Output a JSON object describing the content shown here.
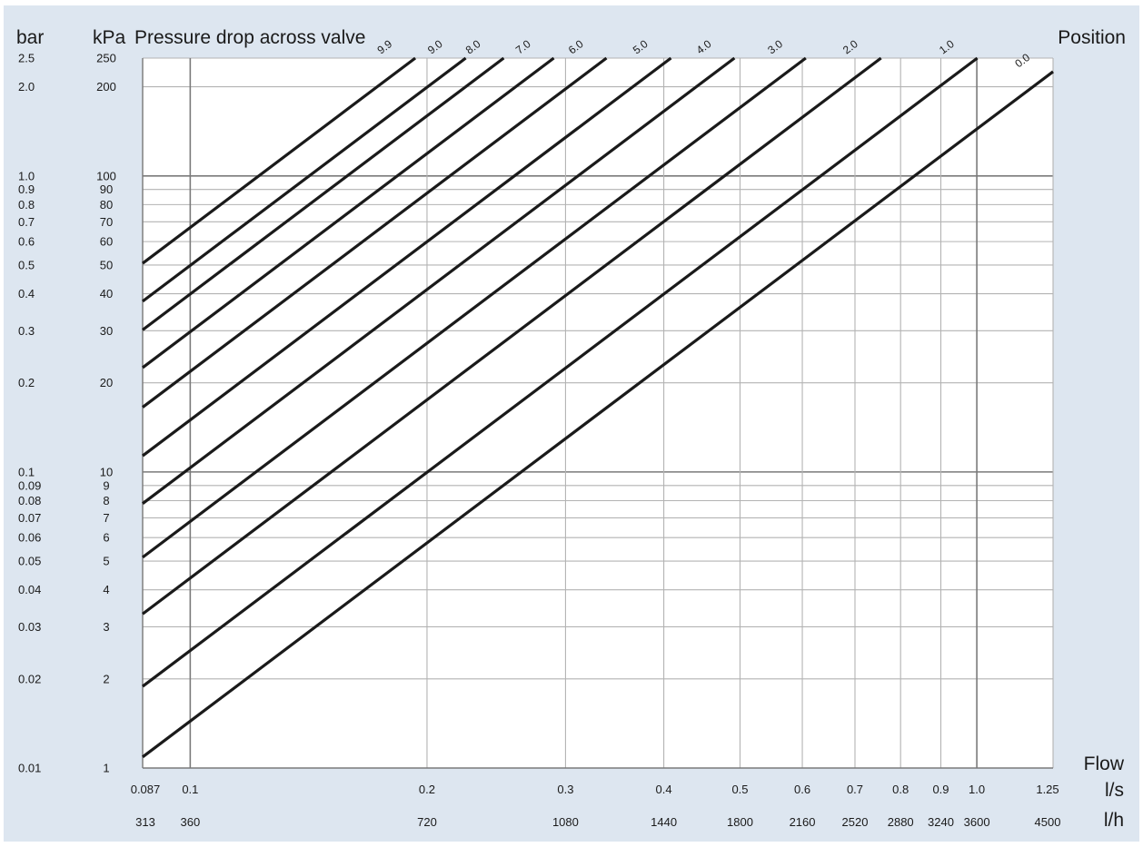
{
  "chart_data": {
    "type": "line",
    "title": "Pressure drop across valve",
    "y_units": [
      "bar",
      "kPa"
    ],
    "legend_title": "Position",
    "xlabel": "Flow",
    "x_units": [
      "l/s",
      "l/h"
    ],
    "x_scale": "log",
    "y_scale": "log",
    "xlim": [
      0.087,
      1.25
    ],
    "ylim_kpa": [
      1,
      250
    ],
    "x_ticks": [
      {
        "ls": 0.087,
        "ls_label": "0.087",
        "lh_label": "313"
      },
      {
        "ls": 0.1,
        "ls_label": "0.1",
        "lh_label": "360"
      },
      {
        "ls": 0.2,
        "ls_label": "0.2",
        "lh_label": "720"
      },
      {
        "ls": 0.3,
        "ls_label": "0.3",
        "lh_label": "1080"
      },
      {
        "ls": 0.4,
        "ls_label": "0.4",
        "lh_label": "1440"
      },
      {
        "ls": 0.5,
        "ls_label": "0.5",
        "lh_label": "1800"
      },
      {
        "ls": 0.6,
        "ls_label": "0.6",
        "lh_label": "2160"
      },
      {
        "ls": 0.7,
        "ls_label": "0.7",
        "lh_label": "2520"
      },
      {
        "ls": 0.8,
        "ls_label": "0.8",
        "lh_label": "2880"
      },
      {
        "ls": 0.9,
        "ls_label": "0.9",
        "lh_label": "3240"
      },
      {
        "ls": 1.0,
        "ls_label": "1.0",
        "lh_label": "3600"
      },
      {
        "ls": 1.25,
        "ls_label": "1.25",
        "lh_label": "4500"
      }
    ],
    "y_ticks": [
      {
        "kpa": 250,
        "kpa_label": "250",
        "bar_label": "2.5"
      },
      {
        "kpa": 200,
        "kpa_label": "200",
        "bar_label": "2.0"
      },
      {
        "kpa": 100,
        "kpa_label": "100",
        "bar_label": "1.0"
      },
      {
        "kpa": 90,
        "kpa_label": "90",
        "bar_label": "0.9"
      },
      {
        "kpa": 80,
        "kpa_label": "80",
        "bar_label": "0.8"
      },
      {
        "kpa": 70,
        "kpa_label": "70",
        "bar_label": "0.7"
      },
      {
        "kpa": 60,
        "kpa_label": "60",
        "bar_label": "0.6"
      },
      {
        "kpa": 50,
        "kpa_label": "50",
        "bar_label": "0.5"
      },
      {
        "kpa": 40,
        "kpa_label": "40",
        "bar_label": "0.4"
      },
      {
        "kpa": 30,
        "kpa_label": "30",
        "bar_label": "0.3"
      },
      {
        "kpa": 20,
        "kpa_label": "20",
        "bar_label": "0.2"
      },
      {
        "kpa": 10,
        "kpa_label": "10",
        "bar_label": "0.1"
      },
      {
        "kpa": 9,
        "kpa_label": "9",
        "bar_label": "0.09"
      },
      {
        "kpa": 8,
        "kpa_label": "8",
        "bar_label": "0.08"
      },
      {
        "kpa": 7,
        "kpa_label": "7",
        "bar_label": "0.07"
      },
      {
        "kpa": 6,
        "kpa_label": "6",
        "bar_label": "0.06"
      },
      {
        "kpa": 5,
        "kpa_label": "5",
        "bar_label": "0.05"
      },
      {
        "kpa": 4,
        "kpa_label": "4",
        "bar_label": "0.04"
      },
      {
        "kpa": 3,
        "kpa_label": "3",
        "bar_label": "0.03"
      },
      {
        "kpa": 2,
        "kpa_label": "2",
        "bar_label": "0.02"
      },
      {
        "kpa": 1,
        "kpa_label": "1",
        "bar_label": "0.01"
      }
    ],
    "major_gridlines": {
      "x": [
        0.1,
        1.0
      ],
      "y_kpa": [
        10,
        100
      ]
    },
    "series": [
      {
        "name": "0.0",
        "kv": 3.0
      },
      {
        "name": "1.0",
        "kv": 2.28
      },
      {
        "name": "2.0",
        "kv": 1.72
      },
      {
        "name": "3.0",
        "kv": 1.38
      },
      {
        "name": "4.0",
        "kv": 1.12
      },
      {
        "name": "5.0",
        "kv": 0.93
      },
      {
        "name": "6.0",
        "kv": 0.77
      },
      {
        "name": "7.0",
        "kv": 0.66
      },
      {
        "name": "8.0",
        "kv": 0.57
      },
      {
        "name": "9.0",
        "kv": 0.51
      },
      {
        "name": "9.9",
        "kv": 0.44
      }
    ],
    "series_formula": "Δp(kPa) = 100 · (Q(l/h) / 1000 / kv)²",
    "colors": {
      "background": "#dde6f0",
      "plot": "#ffffff",
      "grid": "#b3b3b3",
      "grid_major": "#7a7a7a",
      "line": "#1a1a1a"
    }
  }
}
